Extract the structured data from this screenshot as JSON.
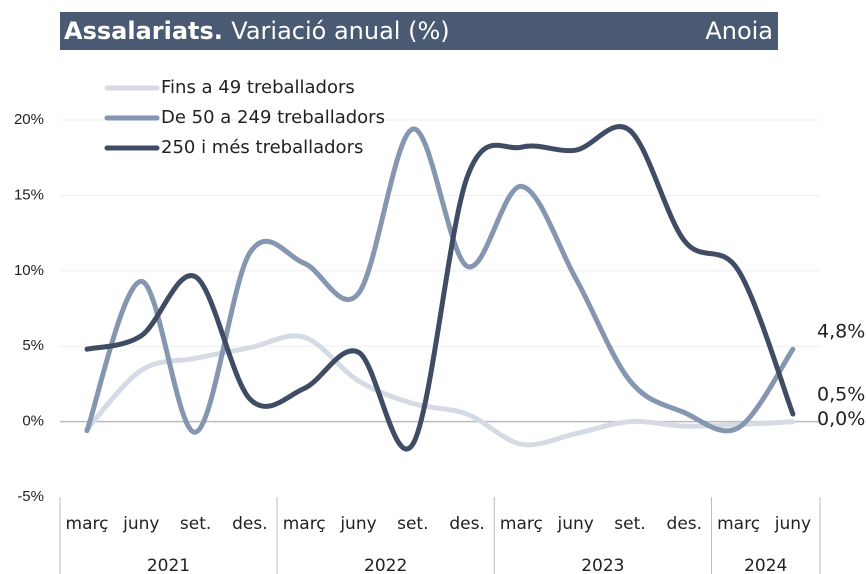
{
  "chart_data": {
    "type": "line",
    "title": "Assalariats.",
    "subtitle": "Variació anual (%)",
    "region": "Anoia",
    "categories": [
      "març",
      "juny",
      "set.",
      "des.",
      "març",
      "juny",
      "set.",
      "des.",
      "març",
      "juny",
      "set.",
      "des.",
      "març",
      "juny"
    ],
    "groups": [
      {
        "label": "2021",
        "span": 4
      },
      {
        "label": "2022",
        "span": 4
      },
      {
        "label": "2023",
        "span": 4
      },
      {
        "label": "2024",
        "span": 2
      }
    ],
    "series": [
      {
        "name": "Fins a 49 treballadors",
        "color": "#d5dbe5",
        "values": [
          -0.5,
          3.4,
          4.2,
          4.9,
          5.6,
          2.7,
          1.2,
          0.5,
          -1.5,
          -0.8,
          0.0,
          -0.3,
          -0.2,
          0.0
        ],
        "value_labels": [
          null,
          null,
          null,
          null,
          null,
          null,
          null,
          null,
          null,
          null,
          null,
          null,
          null,
          "0,0%"
        ]
      },
      {
        "name": "De 50 a 249 treballadors",
        "color": "#8596b0",
        "values": [
          -0.6,
          9.3,
          -0.7,
          11.2,
          10.5,
          8.5,
          19.4,
          10.3,
          15.6,
          9.5,
          2.7,
          0.6,
          -0.4,
          4.8
        ],
        "value_labels": [
          null,
          null,
          null,
          null,
          null,
          null,
          null,
          null,
          null,
          null,
          null,
          null,
          null,
          "4,8%"
        ]
      },
      {
        "name": "250 i més treballadors",
        "color": "#3f4c63",
        "values": [
          4.8,
          5.7,
          9.6,
          1.5,
          2.2,
          4.6,
          -1.5,
          16.2,
          18.2,
          18.0,
          19.3,
          12.0,
          10.0,
          0.5
        ],
        "value_labels": [
          null,
          null,
          null,
          null,
          null,
          null,
          null,
          null,
          null,
          null,
          null,
          null,
          null,
          "0,5%"
        ]
      }
    ],
    "ylim": [
      -5,
      20
    ],
    "yticks": [
      {
        "value": -5,
        "label": "-5%"
      },
      {
        "value": 0,
        "label": "0%"
      },
      {
        "value": 5,
        "label": "5%"
      },
      {
        "value": 10,
        "label": "10%"
      },
      {
        "value": 15,
        "label": "15%"
      },
      {
        "value": 20,
        "label": "20%"
      }
    ],
    "grid": true,
    "legend": "top-left"
  }
}
